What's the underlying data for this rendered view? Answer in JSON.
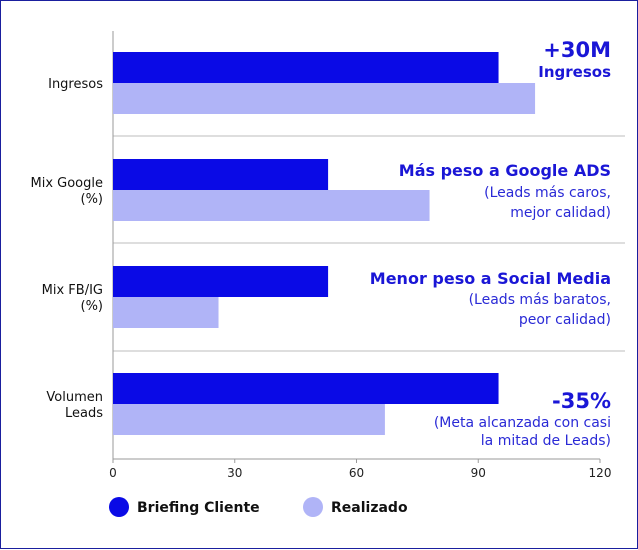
{
  "chart_data": {
    "type": "bar",
    "orientation": "horizontal",
    "categories": [
      [
        "Ingresos"
      ],
      [
        "Mix Google",
        "(%)"
      ],
      [
        "Mix FB/IG",
        "(%)"
      ],
      [
        "Volumen",
        "Leads"
      ]
    ],
    "series": [
      {
        "name": "Briefing Cliente",
        "values": [
          95,
          53,
          53,
          95
        ],
        "color": "#0a0ae6"
      },
      {
        "name": "Realizado",
        "values": [
          104,
          78,
          26,
          67
        ],
        "color": "#b0b4f7"
      }
    ],
    "xlim": [
      0,
      120
    ],
    "xticks": [
      0,
      30,
      60,
      90,
      120
    ],
    "grid": false,
    "legend": "bottom-left",
    "annotations": [
      {
        "head": [
          "+30M",
          "Ingresos"
        ],
        "body": []
      },
      {
        "head": [
          "Más peso a Google ADS"
        ],
        "body": [
          "(Leads más caros,",
          "mejor calidad)"
        ]
      },
      {
        "head": [
          "Menor peso a Social Media"
        ],
        "body": [
          "(Leads más baratos,",
          "peor calidad)"
        ]
      },
      {
        "head": [
          "-35%"
        ],
        "body": [
          "(Meta alcanzada con casi",
          "la mitad de Leads)"
        ]
      }
    ]
  }
}
